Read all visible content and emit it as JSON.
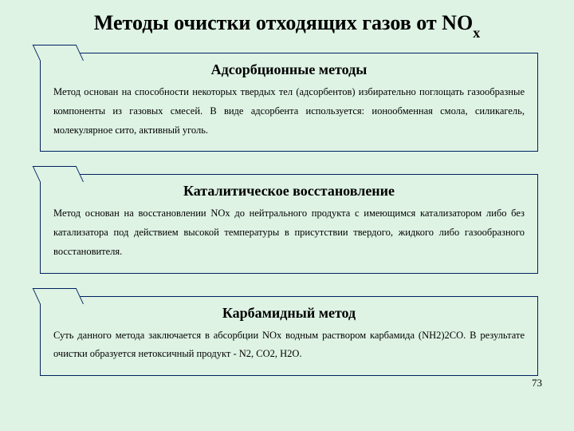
{
  "page": {
    "background_color": "#def3e4",
    "border_color": "#002060",
    "title_prefix": "Методы очистки отходящих газов от NO",
    "title_subscript": "x",
    "page_number": "73"
  },
  "cards": [
    {
      "header": "Адсорбционные методы",
      "text": "Метод основан на способности некоторых твердых тел (адсорбентов) избирательно поглощать газообразные компоненты из газовых смесей. В виде адсорбента используется: ионообменная смола, силикагель, молекулярное сито, активный уголь."
    },
    {
      "header": "Каталитическое восстановление",
      "text": "Метод основан на восстановлении NOх до нейтрального продукта с имеющимся катализатором либо без катализатора под действием высокой температуры в присутствии твердого, жидкого либо газообразного восстановителя."
    },
    {
      "header": "Карбамидный метод",
      "text": "Суть данного метода заключается в абсорбции NOх водным раствором карбамида (NH2)2CO. В результате очистки образуется нетоксичный продукт - N2, CO2, H2O."
    }
  ]
}
